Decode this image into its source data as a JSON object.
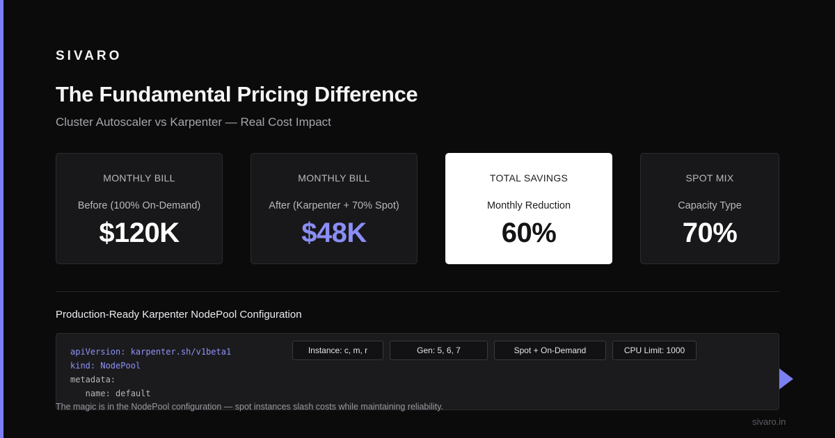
{
  "brand": "SIVARO",
  "title": "The Fundamental Pricing Difference",
  "subtitle": "Cluster Autoscaler vs Karpenter — Real Cost Impact",
  "colors": {
    "accent": "#7c7ff2",
    "background": "#0b0b0c",
    "highlight_card": "#ffffff"
  },
  "cards": [
    {
      "label": "MONTHLY BILL",
      "sub": "Before (100% On-Demand)",
      "value": "$120K"
    },
    {
      "label": "MONTHLY BILL",
      "sub": "After (Karpenter + 70% Spot)",
      "value": "$48K"
    },
    {
      "label": "TOTAL SAVINGS",
      "sub": "Monthly Reduction",
      "value": "60%"
    },
    {
      "label": "SPOT MIX",
      "sub": "Capacity Type",
      "value": "70%"
    }
  ],
  "section_title": "Production-Ready Karpenter NodePool Configuration",
  "code_lines": [
    "apiVersion: karpenter.sh/v1beta1",
    "kind: NodePool",
    "metadata:",
    "   name: default"
  ],
  "tags": [
    "Instance: c, m, r",
    "Gen: 5, 6, 7",
    "Spot + On-Demand",
    "CPU Limit: 1000"
  ],
  "caption": "The magic is in the NodePool configuration — spot instances slash costs while maintaining reliability.",
  "footer_url": "sivaro.in",
  "icons": {
    "next": "play-icon"
  }
}
